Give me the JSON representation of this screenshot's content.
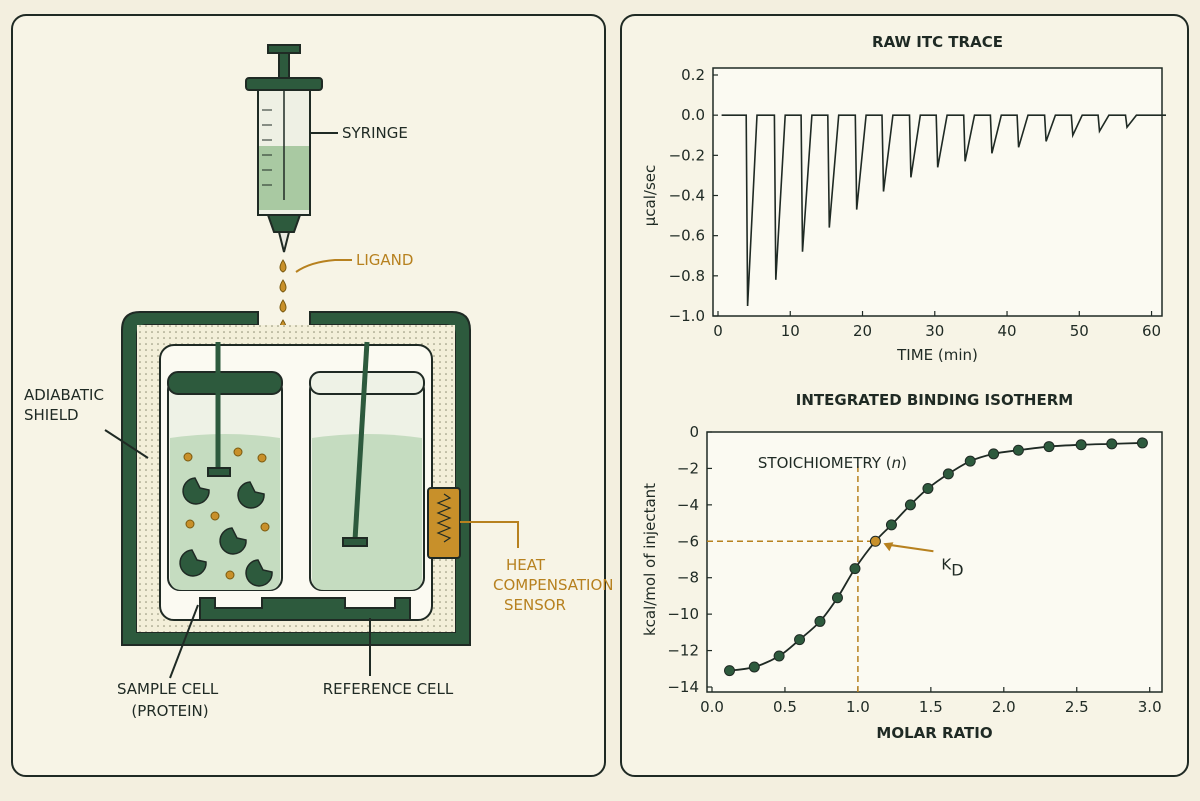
{
  "diagram": {
    "syringe": "SYRINGE",
    "ligand": "LIGAND",
    "adiabatic_shield": [
      "ADIABATIC",
      "SHIELD"
    ],
    "heat_sensor": [
      "HEAT",
      "COMPENSATION",
      "SENSOR"
    ],
    "sample_cell": [
      "SAMPLE CELL",
      "(PROTEIN)"
    ],
    "reference_cell": "REFERENCE CELL"
  },
  "chart_data": [
    {
      "type": "line",
      "title": "RAW ITC TRACE",
      "x_label": "TIME (min)",
      "y_label": "μcal/sec",
      "color": "#1f2a24",
      "x": [
        0.5,
        3.9,
        4.1,
        5.4,
        7.8,
        8.0,
        9.3,
        11.5,
        11.7,
        13.0,
        15.2,
        15.4,
        16.7,
        19.0,
        19.2,
        20.5,
        22.7,
        22.9,
        24.2,
        26.5,
        26.7,
        28.0,
        30.2,
        30.4,
        31.7,
        34.0,
        34.2,
        35.5,
        37.7,
        37.9,
        39.2,
        41.4,
        41.6,
        42.9,
        45.2,
        45.4,
        46.7,
        48.9,
        49.1,
        50.4,
        52.6,
        52.8,
        54.1,
        56.4,
        56.6,
        57.9,
        62
      ],
      "values": [
        0,
        0,
        -0.95,
        0,
        0,
        -0.82,
        0,
        0,
        -0.68,
        0,
        0,
        -0.56,
        0,
        0,
        -0.47,
        0,
        0,
        -0.38,
        0,
        0,
        -0.31,
        0,
        0,
        -0.26,
        0,
        0,
        -0.23,
        0,
        0,
        -0.19,
        0,
        0,
        -0.16,
        0,
        0,
        -0.13,
        0,
        0,
        -0.1,
        0,
        0,
        -0.08,
        0,
        0,
        -0.06,
        0,
        0
      ],
      "xlim": [
        0,
        62
      ],
      "ylim": [
        -1.0,
        0.2
      ],
      "xticks": [
        0,
        10,
        20,
        30,
        40,
        50,
        60
      ],
      "yticks": [
        {
          "value": -1.0,
          "label": "−1.0"
        },
        {
          "value": -0.8,
          "label": "−0.8"
        },
        {
          "value": -0.6,
          "label": "−0.6"
        },
        {
          "value": -0.4,
          "label": "−0.4"
        },
        {
          "value": -0.2,
          "label": "−0.2"
        },
        {
          "value": 0.0,
          "label": "0.0"
        },
        0.2
      ]
    },
    {
      "type": "scatter-line",
      "title": "INTEGRATED BINDING ISOTHERM",
      "x_label": "MOLAR RATIO",
      "y_label": "kcal/mol of injectant",
      "color": "#2d5a3d",
      "x": [
        0.12,
        0.29,
        0.46,
        0.6,
        0.74,
        0.86,
        0.98,
        1.12,
        1.23,
        1.36,
        1.48,
        1.62,
        1.77,
        1.93,
        2.1,
        2.31,
        2.53,
        2.74,
        2.95
      ],
      "values": [
        -13.1,
        -12.9,
        -12.3,
        -11.4,
        -10.4,
        -9.1,
        -7.5,
        -6.0,
        -5.1,
        -4.0,
        -3.1,
        -2.3,
        -1.6,
        -1.2,
        -1.0,
        -0.8,
        -0.7,
        -0.65,
        -0.6
      ],
      "marker_colors": [
        "#2d5a3d",
        "#2d5a3d",
        "#2d5a3d",
        "#2d5a3d",
        "#2d5a3d",
        "#2d5a3d",
        "#2d5a3d",
        "#c8902a",
        "#2d5a3d",
        "#2d5a3d",
        "#2d5a3d",
        "#2d5a3d",
        "#2d5a3d",
        "#2d5a3d",
        "#2d5a3d",
        "#2d5a3d",
        "#2d5a3d",
        "#2d5a3d",
        "#2d5a3d"
      ],
      "xlim": [
        0,
        3.05
      ],
      "ylim": [
        -14,
        0
      ],
      "xticks": [
        {
          "value": 0,
          "label": "0.0"
        },
        0.5,
        {
          "value": 1,
          "label": "1.0"
        },
        1.5,
        {
          "value": 2,
          "label": "2.0"
        },
        2.5,
        {
          "value": 3,
          "label": "3.0"
        }
      ],
      "yticks": [
        {
          "value": -14,
          "label": "−14"
        },
        {
          "value": -12,
          "label": "−12"
        },
        {
          "value": -10,
          "label": "−10"
        },
        {
          "value": -8,
          "label": "−8"
        },
        {
          "value": -6,
          "label": "−6"
        },
        {
          "value": -4,
          "label": "−4"
        },
        {
          "value": -2,
          "label": "−2"
        },
        0
      ],
      "annotations": [
        {
          "text": "STOICHIOMETRY (",
          "italic": "n",
          "close": ")",
          "x": 1.0
        },
        {
          "text": "K",
          "subscript": "D",
          "y": -6.0
        }
      ]
    }
  ]
}
